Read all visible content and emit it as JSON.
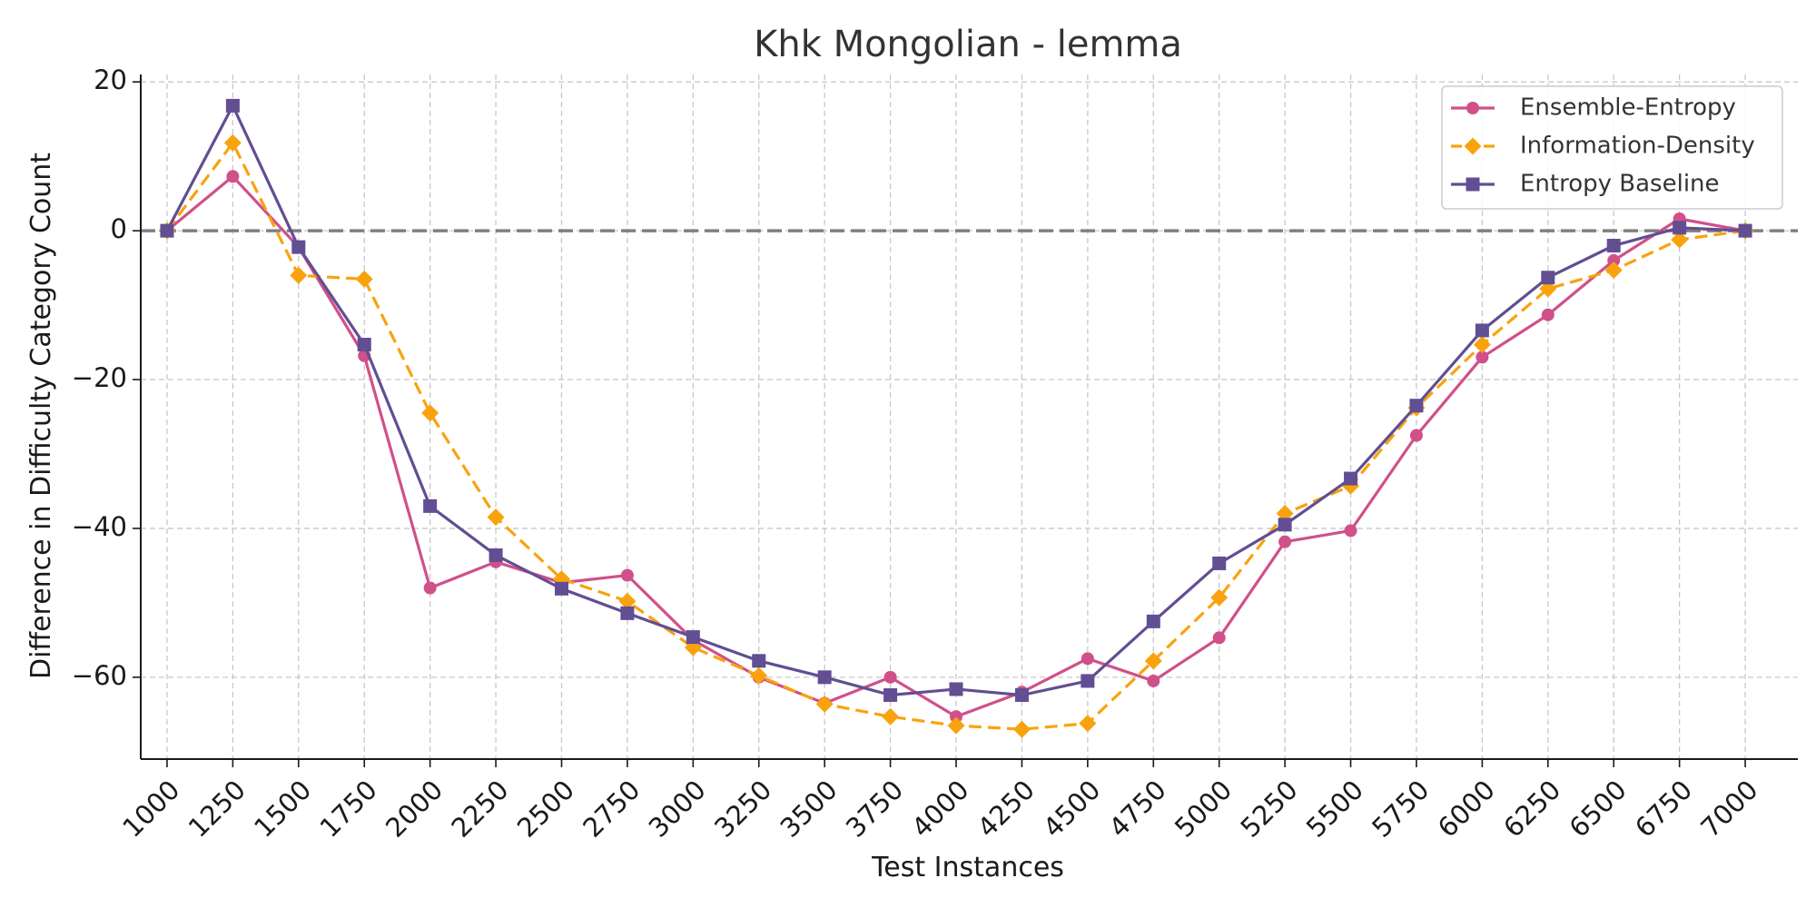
{
  "chart_data": {
    "type": "line",
    "title": "Khk Mongolian - lemma",
    "xlabel": "Test Instances",
    "ylabel": "Difference in Difficulty Category Count",
    "x": [
      1000,
      1250,
      1500,
      1750,
      2000,
      2250,
      2500,
      2750,
      3000,
      3250,
      3500,
      3750,
      4000,
      4250,
      4500,
      4750,
      5000,
      5250,
      5500,
      5750,
      6000,
      6250,
      6500,
      6750,
      7000
    ],
    "x_tick_labels": [
      "1000",
      "1250",
      "1500",
      "1750",
      "2000",
      "2250",
      "2500",
      "2750",
      "3000",
      "3250",
      "3500",
      "3750",
      "4000",
      "4250",
      "4500",
      "4750",
      "5000",
      "5250",
      "5500",
      "5750",
      "6000",
      "6250",
      "6500",
      "6750",
      "7000"
    ],
    "ylim": [
      -71,
      21
    ],
    "y_ticks": [
      20,
      0,
      -20,
      -40,
      -60
    ],
    "y_tick_labels": [
      "20",
      "0",
      "−20",
      "−40",
      "−60"
    ],
    "grid": true,
    "reference_line": {
      "y": 0,
      "style": "dashed",
      "color": "#808080"
    },
    "legend_position": "top-right",
    "series": [
      {
        "name": "Ensemble-Entropy",
        "color": "#d0508a",
        "marker": "circle",
        "line_style": "solid",
        "values": [
          0,
          7.3,
          -2.2,
          -16.8,
          -48,
          -44.5,
          -47.3,
          -46.3,
          -55,
          -60,
          -63.5,
          -60,
          -65.3,
          -62,
          -57.5,
          -60.5,
          -54.7,
          -41.8,
          -40.3,
          -27.5,
          -17,
          -11.3,
          -4,
          1.6,
          0
        ]
      },
      {
        "name": "Information-Density",
        "color": "#f8a30e",
        "marker": "diamond",
        "line_style": "dashed",
        "values": [
          0,
          11.8,
          -6,
          -6.5,
          -24.5,
          -38.5,
          -46.8,
          -49.8,
          -56,
          -59.8,
          -63.6,
          -65.3,
          -66.5,
          -67,
          -66.2,
          -57.8,
          -49.3,
          -38,
          -34.3,
          -23.8,
          -15.3,
          -7.8,
          -5.3,
          -1.2,
          0
        ]
      },
      {
        "name": "Entropy Baseline",
        "color": "#624e93",
        "marker": "square",
        "line_style": "solid",
        "values": [
          0,
          16.8,
          -2.2,
          -15.3,
          -37,
          -43.6,
          -48.1,
          -51.4,
          -54.6,
          -57.8,
          -60,
          -62.4,
          -61.6,
          -62.4,
          -60.5,
          -52.5,
          -44.7,
          -39.5,
          -33.3,
          -23.5,
          -13.4,
          -6.3,
          -2,
          0.4,
          0
        ]
      }
    ]
  }
}
